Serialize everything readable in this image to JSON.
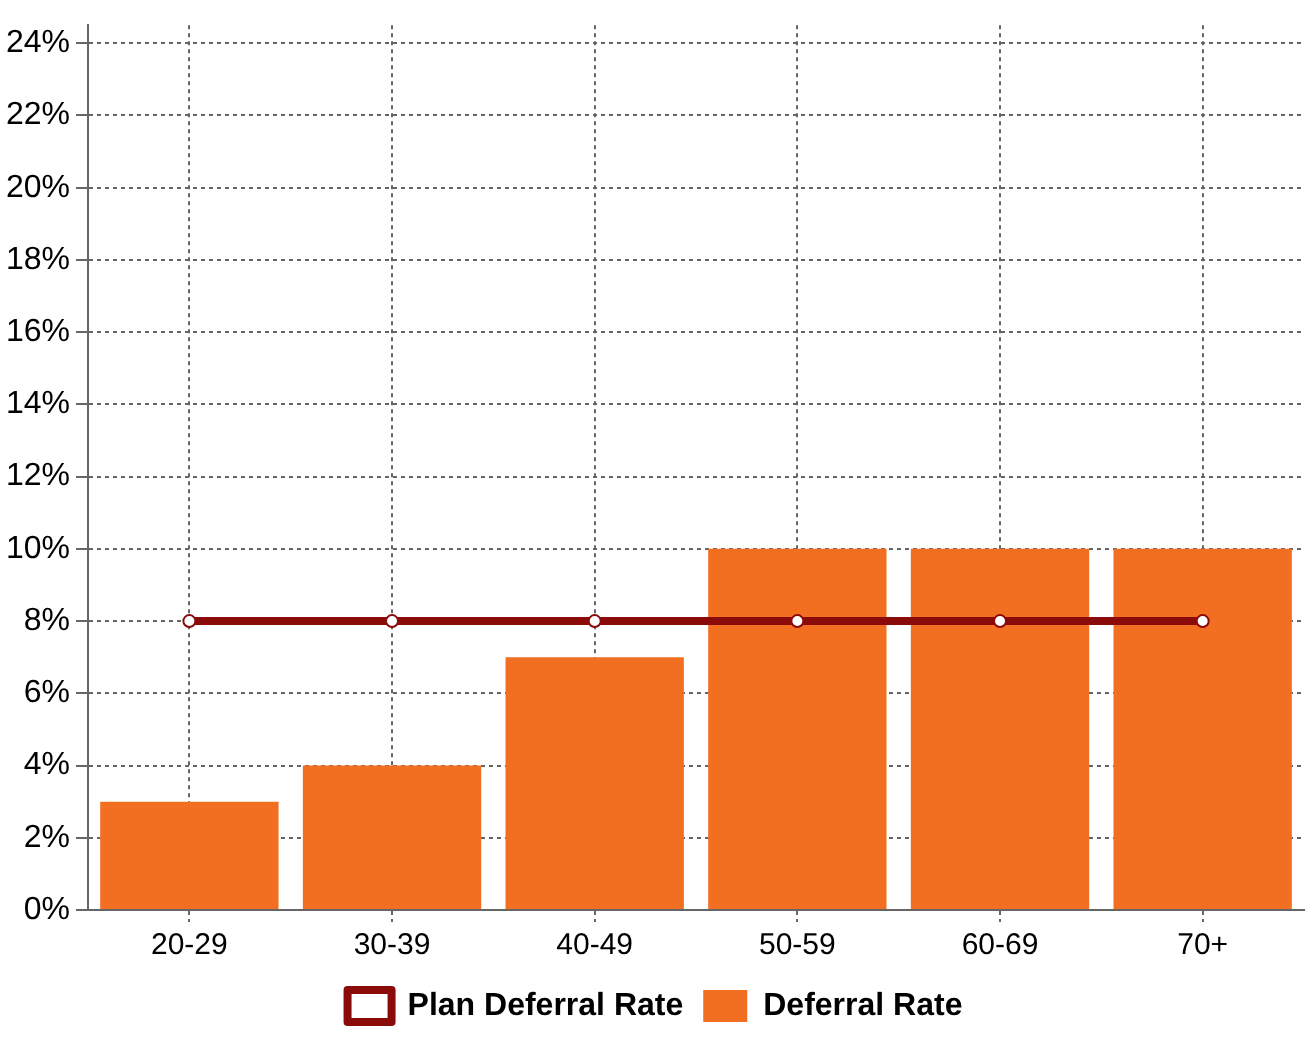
{
  "chart_data": {
    "type": "bar",
    "categories": [
      "20-29",
      "30-39",
      "40-49",
      "50-59",
      "60-69",
      "70+"
    ],
    "series": [
      {
        "name": "Plan Deferral Rate",
        "type": "line",
        "color": "#8b0a0a",
        "values": [
          8,
          8,
          8,
          8,
          8,
          8
        ]
      },
      {
        "name": "Deferral Rate",
        "color": "#f26f21",
        "values": [
          3,
          4,
          7,
          10,
          10,
          10
        ]
      }
    ],
    "ylim": [
      0,
      24.5
    ],
    "yticks": [
      {
        "value": 0,
        "label": "0%"
      },
      {
        "value": 2,
        "label": "2%"
      },
      {
        "value": 4,
        "label": "4%"
      },
      {
        "value": 6,
        "label": "6%"
      },
      {
        "value": 8,
        "label": "8%"
      },
      {
        "value": 10,
        "label": "10%"
      },
      {
        "value": 12,
        "label": "12%"
      },
      {
        "value": 14,
        "label": "14%"
      },
      {
        "value": 16,
        "label": "16%"
      },
      {
        "value": 18,
        "label": "18%"
      },
      {
        "value": 20,
        "label": "20%"
      },
      {
        "value": 22,
        "label": "22%"
      },
      {
        "value": 24,
        "label": "24%"
      }
    ],
    "grid": true,
    "legend": "bottom",
    "marker": "circle",
    "line_style": "solid"
  }
}
